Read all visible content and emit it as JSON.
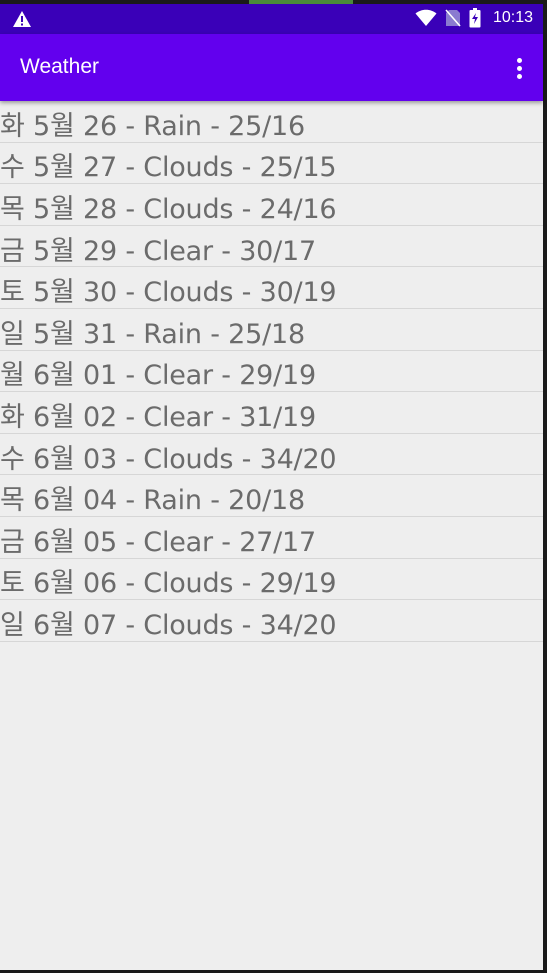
{
  "status_bar": {
    "time": "10:13",
    "icons": [
      "warning-icon",
      "wifi-icon",
      "no-sim-icon",
      "battery-charging-icon"
    ]
  },
  "app_bar": {
    "title": "Weather",
    "menu_icon": "more-vert-icon"
  },
  "forecast": [
    "화 5월 26 - Rain - 25/16",
    "수 5월 27 - Clouds - 25/15",
    "목 5월 28 - Clouds - 24/16",
    "금 5월 29 - Clear - 30/17",
    "토 5월 30 - Clouds - 30/19",
    "일 5월 31 - Rain - 25/18",
    "월 6월 01 - Clear - 29/19",
    "화 6월 02 - Clear - 31/19",
    "수 6월 03 - Clouds - 34/20",
    "목 6월 04 - Rain - 20/18",
    "금 6월 05 - Clear - 27/17",
    "토 6월 06 - Clouds - 29/19",
    "일 6월 07 - Clouds - 34/20"
  ],
  "colors": {
    "status_bar": "#3a00b8",
    "app_bar": "#6200ee",
    "background": "#eeeeee",
    "list_text": "#6b6b6b"
  }
}
